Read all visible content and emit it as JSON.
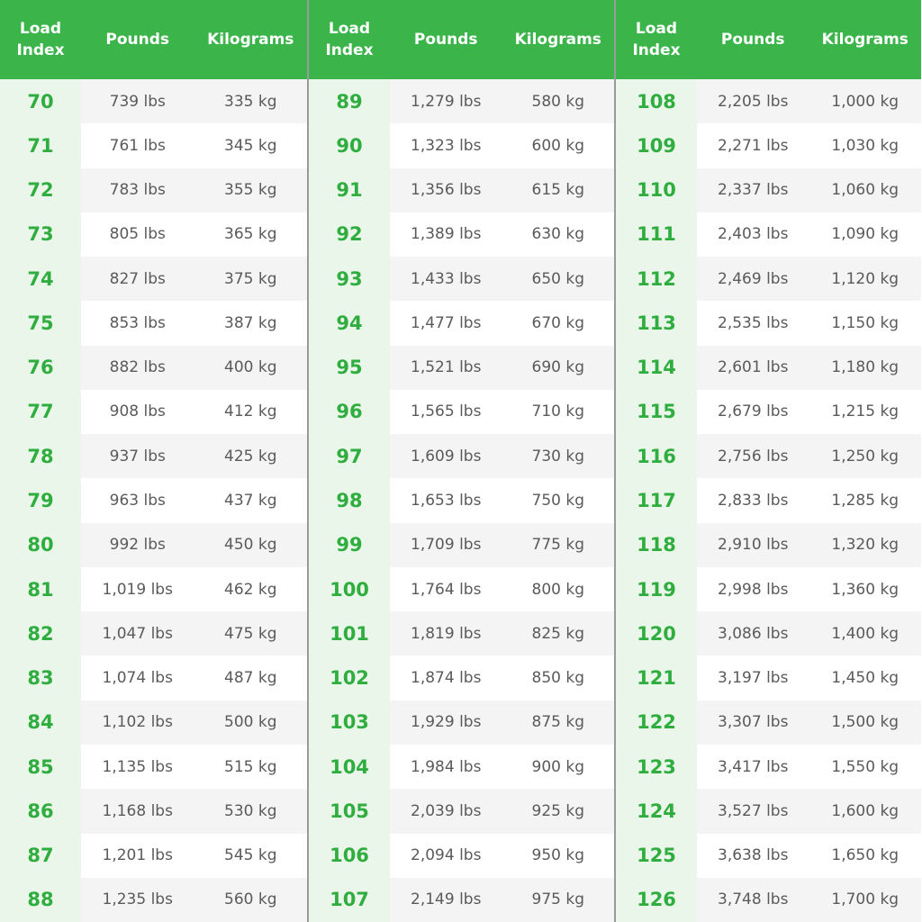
{
  "panels": [
    {
      "header": [
        "Load Index",
        "Pounds",
        "Kilograms"
      ],
      "rows": [
        [
          "70",
          "739 lbs",
          "335 kg"
        ],
        [
          "71",
          "761 lbs",
          "345 kg"
        ],
        [
          "72",
          "783 lbs",
          "355 kg"
        ],
        [
          "73",
          "805 lbs",
          "365 kg"
        ],
        [
          "74",
          "827 lbs",
          "375 kg"
        ],
        [
          "75",
          "853 lbs",
          "387 kg"
        ],
        [
          "76",
          "882 lbs",
          "400 kg"
        ],
        [
          "77",
          "908 lbs",
          "412 kg"
        ],
        [
          "78",
          "937 lbs",
          "425 kg"
        ],
        [
          "79",
          "963 lbs",
          "437 kg"
        ],
        [
          "80",
          "992 lbs",
          "450 kg"
        ],
        [
          "81",
          "1,019 lbs",
          "462 kg"
        ],
        [
          "82",
          "1,047 lbs",
          "475 kg"
        ],
        [
          "83",
          "1,074 lbs",
          "487 kg"
        ],
        [
          "84",
          "1,102 lbs",
          "500 kg"
        ],
        [
          "85",
          "1,135 lbs",
          "515 kg"
        ],
        [
          "86",
          "1,168 lbs",
          "530 kg"
        ],
        [
          "87",
          "1,201 lbs",
          "545 kg"
        ],
        [
          "88",
          "1,235 lbs",
          "560 kg"
        ]
      ]
    },
    {
      "header": [
        "Load Index",
        "Pounds",
        "Kilograms"
      ],
      "rows": [
        [
          "89",
          "1,279 lbs",
          "580 kg"
        ],
        [
          "90",
          "1,323 lbs",
          "600 kg"
        ],
        [
          "91",
          "1,356 lbs",
          "615 kg"
        ],
        [
          "92",
          "1,389 lbs",
          "630 kg"
        ],
        [
          "93",
          "1,433 lbs",
          "650 kg"
        ],
        [
          "94",
          "1,477 lbs",
          "670 kg"
        ],
        [
          "95",
          "1,521 lbs",
          "690 kg"
        ],
        [
          "96",
          "1,565 lbs",
          "710 kg"
        ],
        [
          "97",
          "1,609 lbs",
          "730 kg"
        ],
        [
          "98",
          "1,653 lbs",
          "750 kg"
        ],
        [
          "99",
          "1,709 lbs",
          "775 kg"
        ],
        [
          "100",
          "1,764 lbs",
          "800 kg"
        ],
        [
          "101",
          "1,819 lbs",
          "825 kg"
        ],
        [
          "102",
          "1,874 lbs",
          "850 kg"
        ],
        [
          "103",
          "1,929 lbs",
          "875 kg"
        ],
        [
          "104",
          "1,984 lbs",
          "900 kg"
        ],
        [
          "105",
          "2,039 lbs",
          "925 kg"
        ],
        [
          "106",
          "2,094 lbs",
          "950 kg"
        ],
        [
          "107",
          "2,149 lbs",
          "975 kg"
        ]
      ]
    },
    {
      "header": [
        "Load Index",
        "Pounds",
        "Kilograms"
      ],
      "rows": [
        [
          "108",
          "2,205 lbs",
          "1,000 kg"
        ],
        [
          "109",
          "2,271 lbs",
          "1,030 kg"
        ],
        [
          "110",
          "2,337 lbs",
          "1,060 kg"
        ],
        [
          "111",
          "2,403 lbs",
          "1,090 kg"
        ],
        [
          "112",
          "2,469 lbs",
          "1,120 kg"
        ],
        [
          "113",
          "2,535 lbs",
          "1,150 kg"
        ],
        [
          "114",
          "2,601 lbs",
          "1,180 kg"
        ],
        [
          "115",
          "2,679 lbs",
          "1,215 kg"
        ],
        [
          "116",
          "2,756 lbs",
          "1,250 kg"
        ],
        [
          "117",
          "2,833 lbs",
          "1,285 kg"
        ],
        [
          "118",
          "2,910 lbs",
          "1,320 kg"
        ],
        [
          "119",
          "2,998 lbs",
          "1,360 kg"
        ],
        [
          "120",
          "3,086 lbs",
          "1,400 kg"
        ],
        [
          "121",
          "3,197 lbs",
          "1,450 kg"
        ],
        [
          "122",
          "3,307 lbs",
          "1,500 kg"
        ],
        [
          "123",
          "3,417 lbs",
          "1,550 kg"
        ],
        [
          "124",
          "3,527 lbs",
          "1,600 kg"
        ],
        [
          "125",
          "3,638 lbs",
          "1,650 kg"
        ],
        [
          "126",
          "3,748 lbs",
          "1,700 kg"
        ]
      ]
    }
  ]
}
